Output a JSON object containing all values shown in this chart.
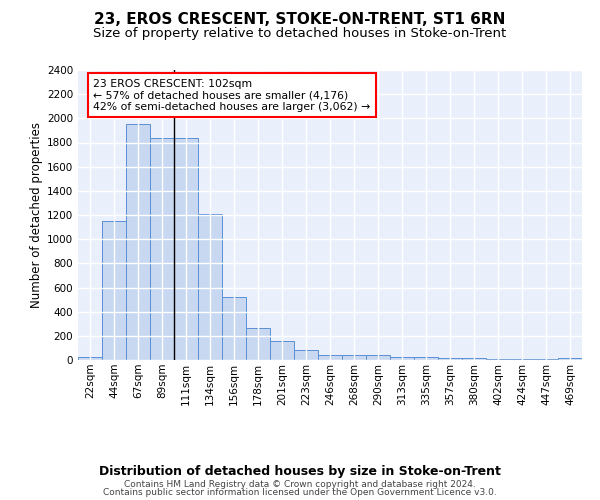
{
  "title": "23, EROS CRESCENT, STOKE-ON-TRENT, ST1 6RN",
  "subtitle": "Size of property relative to detached houses in Stoke-on-Trent",
  "xlabel": "Distribution of detached houses by size in Stoke-on-Trent",
  "ylabel": "Number of detached properties",
  "categories": [
    "22sqm",
    "44sqm",
    "67sqm",
    "89sqm",
    "111sqm",
    "134sqm",
    "156sqm",
    "178sqm",
    "201sqm",
    "223sqm",
    "246sqm",
    "268sqm",
    "290sqm",
    "313sqm",
    "335sqm",
    "357sqm",
    "380sqm",
    "402sqm",
    "424sqm",
    "447sqm",
    "469sqm"
  ],
  "values": [
    28,
    1150,
    1950,
    1840,
    1840,
    1210,
    520,
    265,
    155,
    85,
    45,
    42,
    38,
    22,
    22,
    18,
    14,
    10,
    8,
    5,
    20
  ],
  "bar_color": "#c8d8f0",
  "bar_edge_color": "#5b8fd4",
  "annotation_text": "23 EROS CRESCENT: 102sqm\n← 57% of detached houses are smaller (4,176)\n42% of semi-detached houses are larger (3,062) →",
  "annotation_box_color": "white",
  "annotation_box_edge": "red",
  "vline_x": 3.5,
  "ylim": [
    0,
    2400
  ],
  "yticks": [
    0,
    200,
    400,
    600,
    800,
    1000,
    1200,
    1400,
    1600,
    1800,
    2000,
    2200,
    2400
  ],
  "background_color": "#eaf0fb",
  "grid_color": "white",
  "footer_line1": "Contains HM Land Registry data © Crown copyright and database right 2024.",
  "footer_line2": "Contains public sector information licensed under the Open Government Licence v3.0.",
  "title_fontsize": 11,
  "subtitle_fontsize": 9.5,
  "xlabel_fontsize": 9,
  "ylabel_fontsize": 8.5,
  "tick_fontsize": 7.5,
  "footer_fontsize": 6.5
}
